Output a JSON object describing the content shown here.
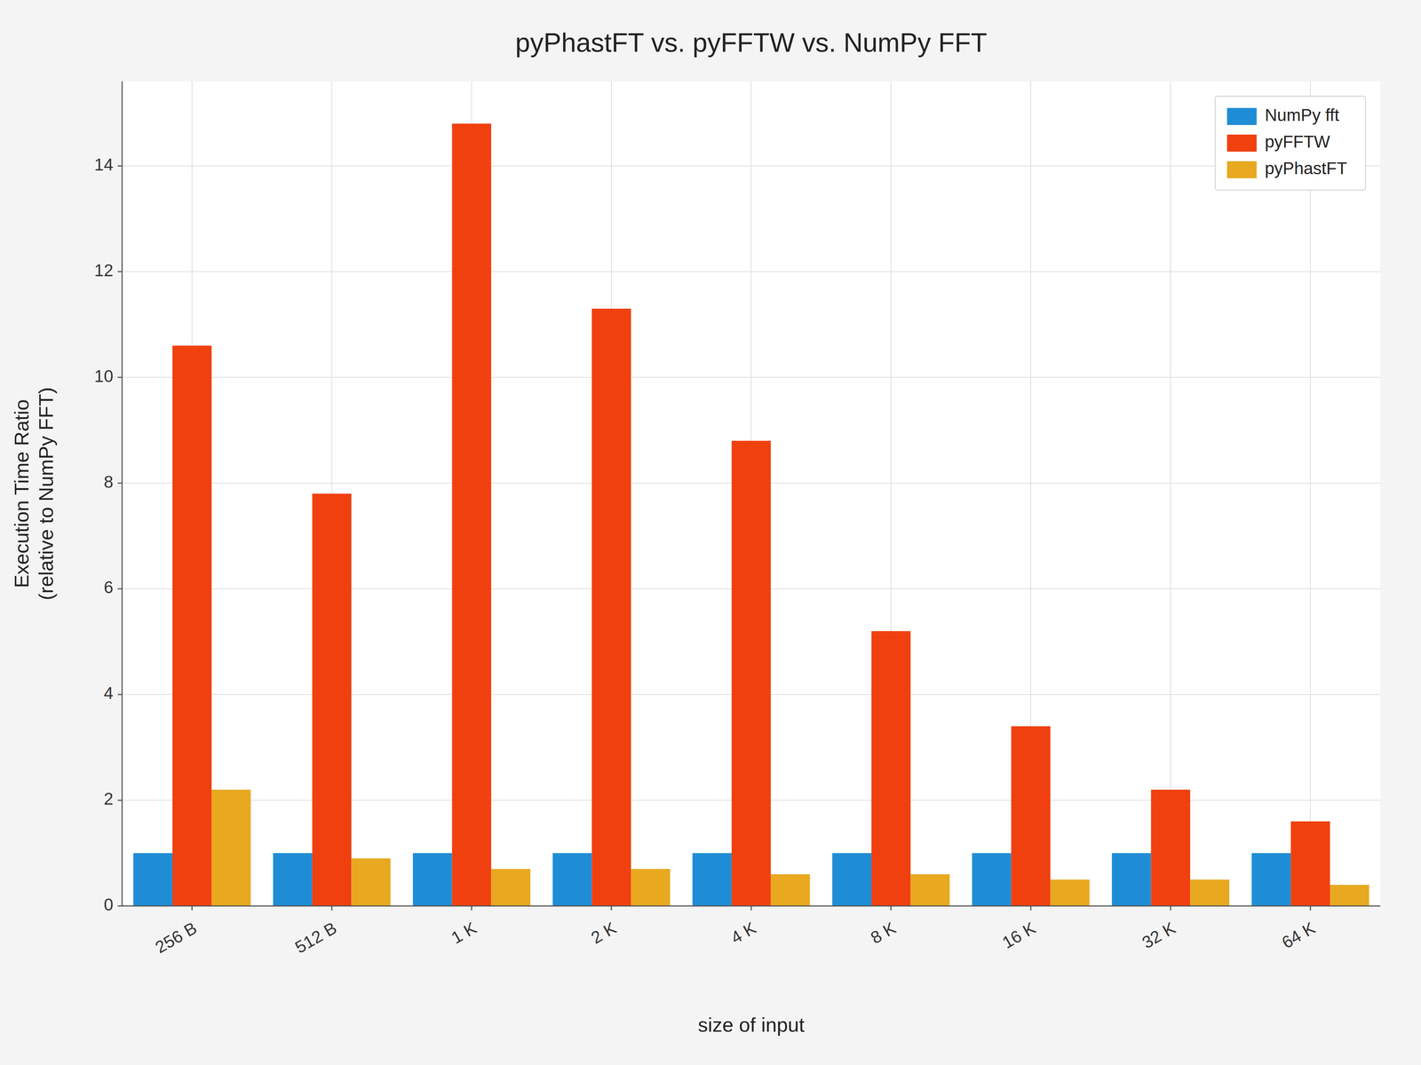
{
  "chart_data": {
    "type": "bar",
    "title": "pyPhastFT vs. pyFFTW vs. NumPy FFT",
    "xlabel": "size of input",
    "ylabel": "Execution Time Ratio\n(relative to NumPy FFT)",
    "categories": [
      "256 B",
      "512 B",
      "1 K",
      "2 K",
      "4 K",
      "8 K",
      "16 K",
      "32 K",
      "64 K"
    ],
    "series": [
      {
        "name": "NumPy fft",
        "color": "#1f8dd6",
        "values": [
          1.0,
          1.0,
          1.0,
          1.0,
          1.0,
          1.0,
          1.0,
          1.0,
          1.0
        ]
      },
      {
        "name": "pyFFTW",
        "color": "#f04010",
        "values": [
          10.6,
          7.8,
          14.8,
          11.3,
          8.8,
          5.2,
          3.4,
          2.2,
          1.6
        ]
      },
      {
        "name": "pyPhastFT",
        "color": "#e8a820",
        "values": [
          2.2,
          0.9,
          0.7,
          0.7,
          0.6,
          0.6,
          0.5,
          0.5,
          0.4
        ]
      }
    ],
    "ylim": [
      0,
      15.6
    ],
    "yticks": [
      0,
      2,
      4,
      6,
      8,
      10,
      12,
      14
    ],
    "grid": true,
    "legend": "upper right"
  }
}
